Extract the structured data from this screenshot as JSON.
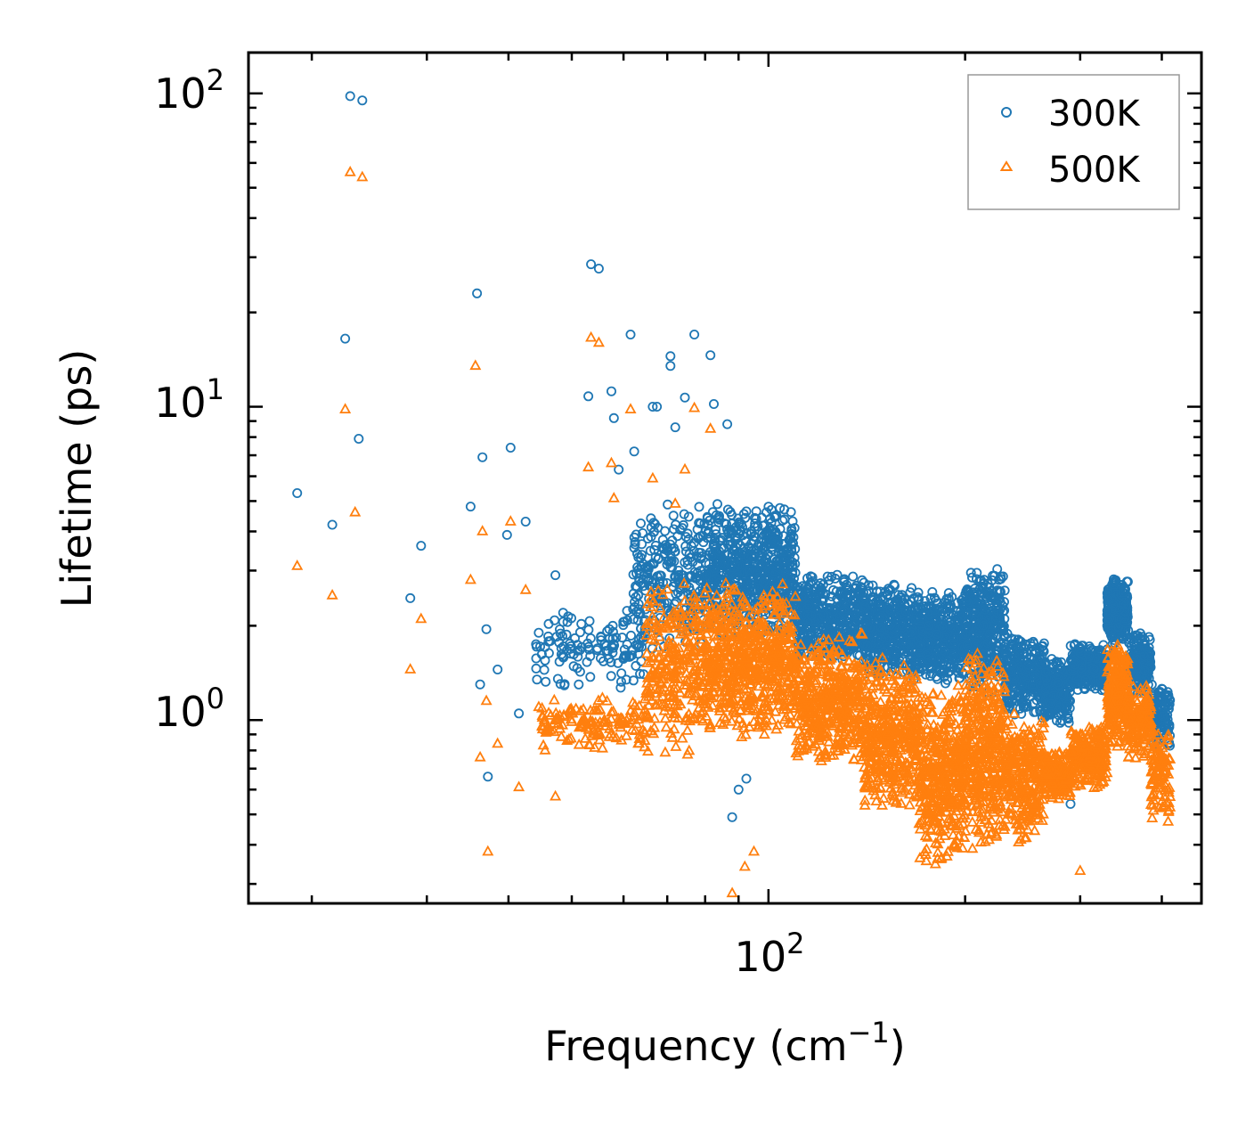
{
  "chart_data": {
    "type": "scatter",
    "title": "",
    "xlabel": "Frequency (cm",
    "xlabel_superscript": "−1",
    "xlabel_suffix": ")",
    "ylabel": "Lifetime (ps)",
    "xscale": "log",
    "yscale": "log",
    "xlim": [
      16,
      460
    ],
    "ylim": [
      0.26,
      135
    ],
    "x_tick_labels": [
      {
        "value": 100,
        "base": "10",
        "exp": "2"
      }
    ],
    "y_tick_labels": [
      {
        "value": 1,
        "base": "10",
        "exp": "0"
      },
      {
        "value": 10,
        "base": "10",
        "exp": "1"
      },
      {
        "value": 100,
        "base": "10",
        "exp": "2"
      }
    ],
    "legend_position": "top-right",
    "series": [
      {
        "name": "300K",
        "color": "#1f77b4",
        "marker": "circle",
        "points": [
          [
            19.0,
            5.3
          ],
          [
            21.5,
            4.2
          ],
          [
            22.5,
            16.5
          ],
          [
            22.9,
            98
          ],
          [
            23.9,
            95
          ],
          [
            23.6,
            7.9
          ],
          [
            28.3,
            2.45
          ],
          [
            29.4,
            3.6
          ],
          [
            35,
            4.8
          ],
          [
            35.8,
            23
          ],
          [
            36.5,
            6.9
          ],
          [
            37,
            1.95
          ],
          [
            36.2,
            1.3
          ],
          [
            37.2,
            0.66
          ],
          [
            38.5,
            1.45
          ],
          [
            39.8,
            3.9
          ],
          [
            40.3,
            7.4
          ],
          [
            41.5,
            1.05
          ],
          [
            42.5,
            4.3
          ],
          [
            44.5,
            1.9
          ],
          [
            45.5,
            1.55
          ],
          [
            47.2,
            2.9
          ],
          [
            48.5,
            2.2
          ],
          [
            53,
            10.8
          ],
          [
            53.5,
            28.5
          ],
          [
            55,
            27.6
          ],
          [
            57.5,
            11.2
          ],
          [
            58,
            9.2
          ],
          [
            59,
            6.3
          ],
          [
            61.5,
            17
          ],
          [
            62.3,
            7.2
          ],
          [
            66.5,
            10
          ],
          [
            67.5,
            10
          ],
          [
            70.8,
            14.5
          ],
          [
            70.8,
            13.5
          ],
          [
            72,
            8.6
          ],
          [
            74.5,
            10.7
          ],
          [
            77,
            17
          ],
          [
            81.5,
            14.6
          ],
          [
            82.5,
            10.2
          ],
          [
            86.5,
            8.8
          ],
          [
            88,
            0.49
          ],
          [
            90,
            0.6
          ],
          [
            92.5,
            0.65
          ],
          [
            290,
            0.54
          ]
        ],
        "bands": [
          {
            "x": [
              44,
              65
            ],
            "ylo": 1.2,
            "yhi": 2.4,
            "n": 130
          },
          {
            "x": [
              62,
              80
            ],
            "ylo": 1.6,
            "yhi": 5.0,
            "n": 260
          },
          {
            "x": [
              80,
              110
            ],
            "ylo": 1.8,
            "yhi": 5.0,
            "n": 650
          },
          {
            "x": [
              110,
              140
            ],
            "ylo": 1.5,
            "yhi": 3.0,
            "n": 450
          },
          {
            "x": [
              140,
              170
            ],
            "ylo": 1.3,
            "yhi": 2.8,
            "n": 430
          },
          {
            "x": [
              170,
              200
            ],
            "ylo": 1.3,
            "yhi": 2.6,
            "n": 380
          },
          {
            "x": [
              200,
              230
            ],
            "ylo": 1.2,
            "yhi": 3.1,
            "n": 360
          },
          {
            "x": [
              230,
              265
            ],
            "ylo": 1.0,
            "yhi": 1.9,
            "n": 280
          },
          {
            "x": [
              265,
              290
            ],
            "ylo": 0.95,
            "yhi": 1.6,
            "n": 210
          },
          {
            "x": [
              290,
              330
            ],
            "ylo": 1.2,
            "yhi": 1.8,
            "n": 240
          },
          {
            "x": [
              330,
              355
            ],
            "ylo": 1.7,
            "yhi": 2.9,
            "n": 280
          },
          {
            "x": [
              355,
              385
            ],
            "ylo": 1.2,
            "yhi": 2.0,
            "n": 170
          },
          {
            "x": [
              385,
              412
            ],
            "ylo": 0.8,
            "yhi": 1.35,
            "n": 110
          }
        ]
      },
      {
        "name": "500K",
        "color": "#ff7f0e",
        "marker": "triangle",
        "points": [
          [
            19.0,
            3.1
          ],
          [
            21.5,
            2.5
          ],
          [
            22.5,
            9.8
          ],
          [
            22.9,
            56
          ],
          [
            23.9,
            54
          ],
          [
            23.3,
            4.6
          ],
          [
            28.3,
            1.45
          ],
          [
            29.4,
            2.1
          ],
          [
            35,
            2.8
          ],
          [
            35.6,
            13.5
          ],
          [
            36.5,
            4.0
          ],
          [
            37,
            1.15
          ],
          [
            36.2,
            0.76
          ],
          [
            37.2,
            0.38
          ],
          [
            38.5,
            0.84
          ],
          [
            40.3,
            4.3
          ],
          [
            42.5,
            2.6
          ],
          [
            41.5,
            0.61
          ],
          [
            44.5,
            1.1
          ],
          [
            45.5,
            0.8
          ],
          [
            47.2,
            0.57
          ],
          [
            53,
            6.4
          ],
          [
            53.5,
            16.6
          ],
          [
            55,
            16
          ],
          [
            57.5,
            6.6
          ],
          [
            58,
            5.1
          ],
          [
            61.5,
            9.8
          ],
          [
            66.5,
            5.9
          ],
          [
            72,
            4.9
          ],
          [
            74.5,
            6.3
          ],
          [
            77,
            9.9
          ],
          [
            81.5,
            8.5
          ],
          [
            88,
            0.28
          ],
          [
            92,
            0.34
          ],
          [
            95,
            0.38
          ],
          [
            300,
            0.33
          ]
        ],
        "bands": [
          {
            "x": [
              45,
              65
            ],
            "ylo": 0.8,
            "yhi": 1.2,
            "n": 140
          },
          {
            "x": [
              65,
              80
            ],
            "ylo": 0.75,
            "yhi": 2.8,
            "n": 280
          },
          {
            "x": [
              80,
              110
            ],
            "ylo": 0.85,
            "yhi": 2.8,
            "n": 650
          },
          {
            "x": [
              110,
              140
            ],
            "ylo": 0.7,
            "yhi": 1.9,
            "n": 450
          },
          {
            "x": [
              140,
              170
            ],
            "ylo": 0.5,
            "yhi": 1.6,
            "n": 420
          },
          {
            "x": [
              170,
              200
            ],
            "ylo": 0.33,
            "yhi": 1.3,
            "n": 430
          },
          {
            "x": [
              200,
              230
            ],
            "ylo": 0.38,
            "yhi": 1.7,
            "n": 380
          },
          {
            "x": [
              230,
              265
            ],
            "ylo": 0.4,
            "yhi": 1.1,
            "n": 280
          },
          {
            "x": [
              265,
              290
            ],
            "ylo": 0.55,
            "yhi": 0.8,
            "n": 180
          },
          {
            "x": [
              290,
              330
            ],
            "ylo": 0.6,
            "yhi": 1.0,
            "n": 240
          },
          {
            "x": [
              330,
              355
            ],
            "ylo": 0.8,
            "yhi": 1.8,
            "n": 270
          },
          {
            "x": [
              355,
              385
            ],
            "ylo": 0.75,
            "yhi": 1.3,
            "n": 170
          },
          {
            "x": [
              385,
              412
            ],
            "ylo": 0.47,
            "yhi": 0.95,
            "n": 110
          }
        ]
      }
    ]
  }
}
